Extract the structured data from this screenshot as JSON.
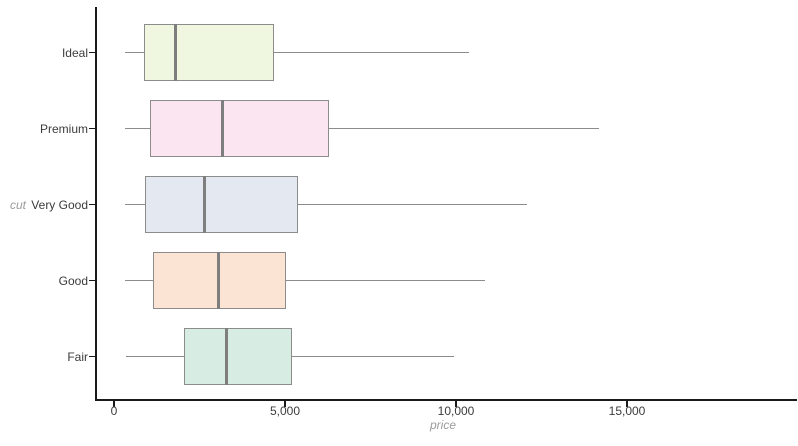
{
  "chart_data": {
    "type": "boxplot",
    "orientation": "horizontal",
    "title": "",
    "xlabel": "price",
    "ylabel": "cut",
    "xlim": [
      0,
      20000
    ],
    "grid": false,
    "legend": "none",
    "outliers_shown": false,
    "x_ticks": [
      {
        "value": 0,
        "label": "0"
      },
      {
        "value": 5000,
        "label": "5,000"
      },
      {
        "value": 10000,
        "label": "10,000"
      },
      {
        "value": 15000,
        "label": "15,000"
      }
    ],
    "categories": [
      "Ideal",
      "Premium",
      "Very Good",
      "Good",
      "Fair"
    ],
    "series": [
      {
        "category": "Ideal",
        "whisker_low": 326,
        "q1": 878,
        "median": 1810,
        "q3": 4678,
        "whisker_high": 10379,
        "fill": "#f0f7e1"
      },
      {
        "category": "Premium",
        "whisker_low": 326,
        "q1": 1046,
        "median": 3185,
        "q3": 6296,
        "whisker_high": 14171,
        "fill": "#fae5f0"
      },
      {
        "category": "Very Good",
        "whisker_low": 336,
        "q1": 912,
        "median": 2648,
        "q3": 5373,
        "whisker_high": 12064,
        "fill": "#e3e8f1"
      },
      {
        "category": "Good",
        "whisker_low": 327,
        "q1": 1145,
        "median": 3050,
        "q3": 5028,
        "whisker_high": 10853,
        "fill": "#fce4d4"
      },
      {
        "category": "Fair",
        "whisker_low": 337,
        "q1": 2050,
        "median": 3282,
        "q3": 5206,
        "whisker_high": 9938,
        "fill": "#d7ede3"
      }
    ]
  },
  "style": {
    "box_border_color": "#8c8c8c",
    "median_color": "#7e7e7e",
    "whisker_color": "#8c8c8c",
    "axis_color": "#1a1a1a",
    "tick_label_color": "#3b3b3b",
    "axis_title_color": "#9b9b9b",
    "background": "#ffffff"
  }
}
